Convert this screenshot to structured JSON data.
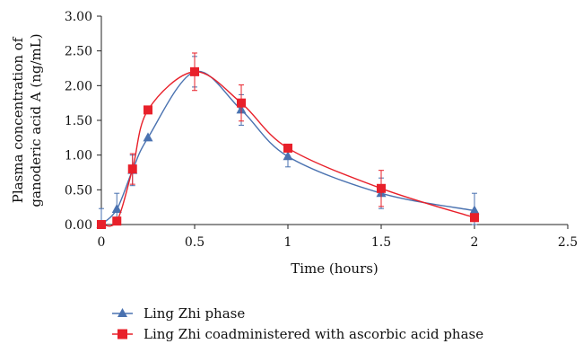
{
  "chart_data": {
    "type": "line",
    "title": "",
    "xlabel": "Time (hours)",
    "ylabel_lines": [
      "Plasma concentration of",
      "ganoderic acid A (ng/mL)"
    ],
    "xlim": [
      0,
      2.5
    ],
    "ylim": [
      0,
      3.0
    ],
    "x_ticks": [
      0,
      0.5,
      1,
      1.5,
      2,
      2.5
    ],
    "x_tick_labels": [
      "0",
      "0.5",
      "1",
      "1.5",
      "2",
      "2.5"
    ],
    "y_ticks": [
      0,
      0.5,
      1.0,
      1.5,
      2.0,
      2.5,
      3.0
    ],
    "y_tick_labels": [
      "0.00",
      "0.50",
      "1.00",
      "1.50",
      "2.00",
      "2.50",
      "3.00"
    ],
    "grid": false,
    "legend_position": "bottom-left",
    "series": [
      {
        "name": "Ling Zhi phase",
        "marker": "triangle",
        "color": "#4a72b0",
        "x": [
          0,
          0.083,
          0.167,
          0.25,
          0.5,
          0.75,
          1,
          1.5,
          2
        ],
        "y": [
          0.0,
          0.22,
          0.78,
          1.25,
          2.2,
          1.65,
          0.98,
          0.45,
          0.2
        ],
        "error": [
          0.23,
          0.23,
          0.22,
          0.0,
          0.22,
          0.22,
          0.15,
          0.22,
          0.25
        ]
      },
      {
        "name": "Ling Zhi coadministered with ascorbic acid phase",
        "marker": "square",
        "color": "#e8202a",
        "x": [
          0,
          0.083,
          0.167,
          0.25,
          0.5,
          0.75,
          1,
          1.5,
          2
        ],
        "y": [
          0.0,
          0.05,
          0.8,
          1.65,
          2.2,
          1.75,
          1.1,
          0.52,
          0.1
        ],
        "error": [
          0.0,
          0.0,
          0.22,
          0.0,
          0.27,
          0.26,
          0.0,
          0.26,
          0.0
        ]
      }
    ]
  }
}
